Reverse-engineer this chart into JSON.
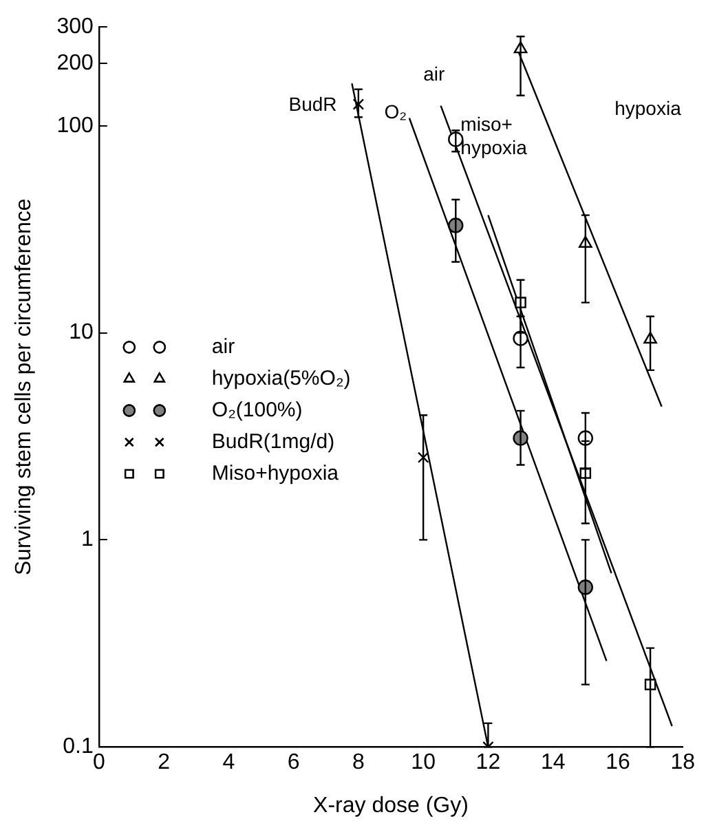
{
  "chart_data": {
    "type": "scatter",
    "xlabel": "X-ray dose (Gy)",
    "ylabel": "Surviving stem cells per circumference",
    "xlim": [
      0,
      18
    ],
    "xticks": [
      0,
      2,
      4,
      6,
      8,
      10,
      12,
      14,
      16,
      18
    ],
    "ylim": [
      0.1,
      300
    ],
    "yticks": [
      0.1,
      1,
      10,
      100,
      200,
      300
    ],
    "log": "y",
    "grid": false,
    "legend": "left",
    "series": [
      {
        "name": "air",
        "marker": "circle",
        "color": "#ffffff",
        "x": [
          11,
          13,
          15
        ],
        "values": [
          86,
          9.4,
          3.1
        ],
        "errors": [
          [
            75,
            95
          ],
          [
            6.8,
            12
          ],
          [
            2.2,
            4.1
          ]
        ]
      },
      {
        "name": "hypoxia(5%O₂)",
        "marker": "triangle",
        "color": "#ffffff",
        "x": [
          13,
          15,
          17
        ],
        "values": [
          235,
          27,
          9.3
        ],
        "errors": [
          [
            140,
            270
          ],
          [
            14,
            37
          ],
          [
            6.6,
            12
          ]
        ]
      },
      {
        "name": "O₂(100%)",
        "marker": "circle",
        "color": "#808080",
        "x": [
          11,
          13,
          15
        ],
        "values": [
          33,
          3.1,
          0.59
        ],
        "errors": [
          [
            22,
            44
          ],
          [
            2.3,
            4.2
          ],
          [
            0.2,
            1.0
          ]
        ]
      },
      {
        "name": "BudR(1mg/d)",
        "marker": "cross",
        "color": "#000000",
        "x": [
          8,
          10,
          12
        ],
        "values": [
          127,
          2.5,
          0.1
        ],
        "errors": [
          [
            110,
            150
          ],
          [
            1,
            4
          ],
          [
            0.1,
            0.13
          ]
        ]
      },
      {
        "name": "Miso+hypoxia",
        "marker": "square",
        "color": "#ffffff",
        "x": [
          13,
          15,
          17
        ],
        "values": [
          14,
          2.1,
          0.2
        ],
        "errors": [
          [
            10,
            18
          ],
          [
            1.2,
            3
          ],
          [
            0.1,
            0.3
          ]
        ]
      },
      {
        "type": "line",
        "color": "#000000",
        "x": [
          7.8,
          12
        ],
        "values": [
          160,
          0.1
        ]
      },
      {
        "type": "line",
        "color": "#000000",
        "x": [
          9.57,
          15.65
        ],
        "values": [
          109,
          0.26
        ]
      },
      {
        "type": "line",
        "color": "#000000",
        "x": [
          10.54,
          17.67
        ],
        "values": [
          125,
          0.126
        ]
      },
      {
        "type": "line",
        "color": "#000000",
        "x": [
          12.0,
          15.8
        ],
        "values": [
          37,
          0.69
        ]
      },
      {
        "type": "line",
        "color": "#000000",
        "x": [
          12.9,
          17.35
        ],
        "values": [
          235,
          4.4
        ]
      }
    ],
    "annotations": [
      "BudR",
      "O₂",
      "air",
      "miso+ hypoxia",
      "hypoxia"
    ]
  }
}
